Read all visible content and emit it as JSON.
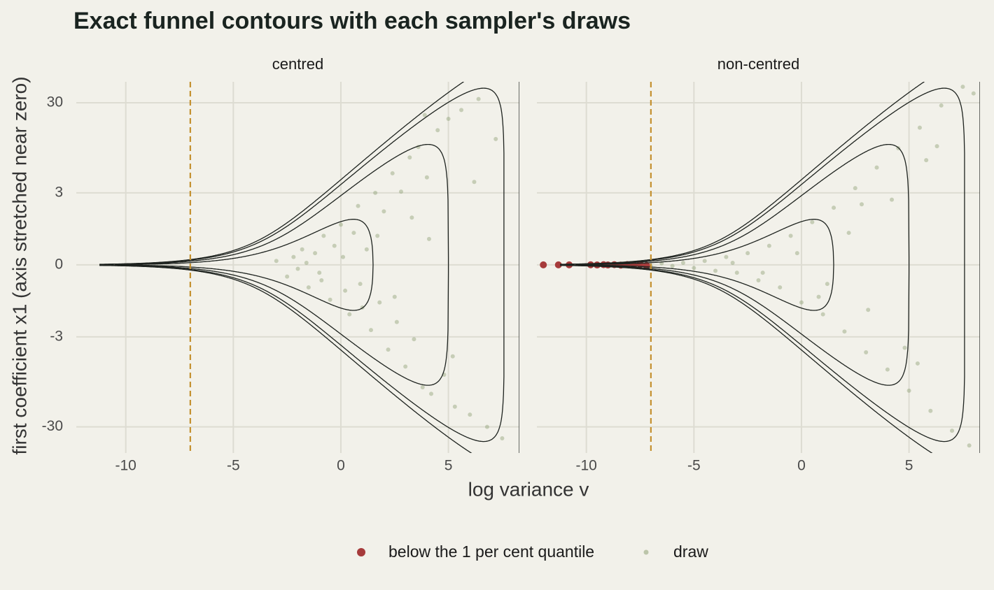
{
  "chart_data": {
    "type": "scatter",
    "title": "Exact funnel contours with each sampler's draws",
    "x_label": "log variance v",
    "y_label": "first coefficient x1 (axis stretched near zero)",
    "panels": [
      "centred",
      "non-centred"
    ],
    "xlim": [
      -12.3,
      8.3
    ],
    "ylim": [
      -58,
      51
    ],
    "y_transform": "asinh",
    "xticks": [
      -10,
      -5,
      0,
      5
    ],
    "yticks": [
      -30,
      -3,
      0,
      3,
      30
    ],
    "grid": true,
    "legend_position": "bottom",
    "vline": {
      "value": -7,
      "color": "#c4902f"
    },
    "contour_levels": [
      -0.875,
      -3.889,
      -7,
      -9
    ],
    "contour_v_start": -11.2,
    "contour_color": "#1e231f",
    "series": [
      {
        "name": "below the 1 per cent quantile",
        "color": "#a63b3b",
        "x": [
          [],
          [
            -12.0,
            -11.3,
            -10.8,
            -9.8,
            -9.5,
            -9.2,
            -9.0,
            -8.7,
            -8.4,
            -8.1,
            -7.8,
            -7.5,
            -7.2
          ]
        ],
        "y": [
          [],
          [
            0,
            0,
            0,
            0.002,
            -0.003,
            0.004,
            -0.003,
            0.005,
            -0.006,
            0.006,
            -0.01,
            0.012,
            -0.015
          ]
        ]
      },
      {
        "name": "draw",
        "color": "#85996a",
        "x": [
          [
            -3.0,
            -2.5,
            -2.2,
            -2.0,
            -1.8,
            -1.5,
            -1.2,
            -1.0,
            -0.8,
            -0.5,
            -0.3,
            0,
            0.2,
            0.4,
            0.6,
            0.8,
            1.0,
            1.2,
            1.4,
            1.6,
            1.8,
            2.0,
            2.2,
            2.4,
            2.6,
            2.8,
            3.0,
            3.2,
            3.4,
            3.6,
            3.8,
            4.0,
            4.2,
            4.5,
            4.8,
            5.0,
            5.3,
            5.6,
            6.0,
            6.4,
            6.8,
            7.2,
            -1.6,
            -0.9,
            0.1,
            0.9,
            1.7,
            2.5,
            3.3,
            4.1,
            5.2,
            6.2,
            7.5,
            3.9
          ],
          [
            -9.6,
            -9.0,
            -8.5,
            -8.0,
            -7.5,
            -7.0,
            -6.5,
            -6.0,
            -5.5,
            -5.0,
            -4.5,
            -4.0,
            -3.5,
            -3.0,
            -2.5,
            -2.0,
            -1.5,
            -1.0,
            -0.5,
            0,
            0.5,
            1.0,
            1.5,
            2.0,
            2.5,
            3.0,
            3.5,
            4.0,
            4.5,
            5.0,
            5.5,
            6.0,
            6.5,
            7.0,
            7.5,
            8.0,
            -3.2,
            -1.8,
            -0.2,
            1.2,
            2.2,
            3.1,
            4.2,
            5.4,
            6.3,
            7.8,
            0.8,
            2.8,
            4.8,
            5.8
          ]
        ],
        "y": [
          [
            0.1,
            -0.3,
            0.2,
            -0.1,
            0.4,
            -0.6,
            0.3,
            -0.2,
            0.8,
            -1.0,
            0.5,
            1.2,
            -0.7,
            -1.6,
            0.9,
            2.1,
            -1.3,
            0.4,
            -2.5,
            3.0,
            -1.1,
            1.8,
            -4.2,
            5.0,
            -2.0,
            3.1,
            -6.5,
            7.5,
            -3.2,
            9.8,
            -11,
            4.5,
            -13,
            15,
            -8,
            20,
            -18,
            25,
            -22,
            33,
            -30,
            12,
            0.05,
            -0.4,
            0.2,
            -0.5,
            0.8,
            -0.9,
            1.5,
            0.7,
            -5,
            4,
            -40,
            22
          ],
          [
            0.005,
            -0.01,
            0.01,
            -0.02,
            0.02,
            -0.03,
            0.04,
            -0.03,
            0.05,
            -0.08,
            0.1,
            -0.15,
            0.2,
            -0.2,
            0.3,
            -0.4,
            0.5,
            -0.6,
            0.8,
            -1.1,
            1.3,
            -1.6,
            2.0,
            -2.6,
            3.4,
            -4.5,
            5.8,
            -7.0,
            9.5,
            -12,
            16,
            -20,
            28,
            -33,
            45,
            38,
            0.05,
            -0.2,
            0.3,
            -0.5,
            0.9,
            -1.4,
            2.5,
            -6,
            10,
            -48,
            -0.9,
            2.2,
            -4,
            7
          ]
        ]
      }
    ]
  }
}
